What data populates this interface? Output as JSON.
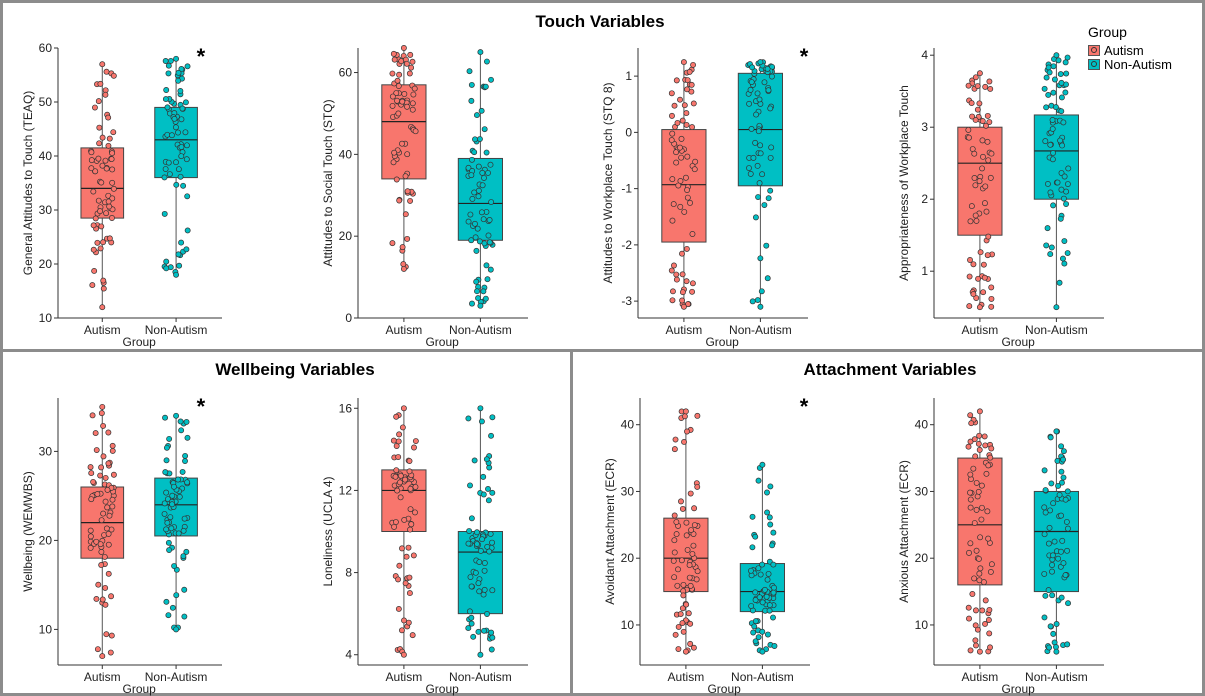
{
  "sections": {
    "touch": "Touch Variables",
    "wellbeing": "Wellbeing Variables",
    "attachment": "Attachment Variables"
  },
  "legend": {
    "title": "Group",
    "items": [
      {
        "label": "Autism",
        "color": "#F8766D"
      },
      {
        "label": "Non-Autism",
        "color": "#00BFC4"
      }
    ]
  },
  "chart_data": [
    {
      "type": "box",
      "ylabel": "General Attitudes to Touch (TEAQ)",
      "xlabel": "Group",
      "categories": [
        "Autism",
        "Non-Autism"
      ],
      "ylim": [
        10,
        60
      ],
      "yticks": [
        10,
        20,
        30,
        40,
        50,
        60
      ],
      "significance": "*",
      "series": [
        {
          "name": "Autism",
          "min": 12,
          "q1": 28.5,
          "median": 34,
          "q3": 41.5,
          "max": 57
        },
        {
          "name": "Non-Autism",
          "min": 18,
          "q1": 36,
          "median": 43,
          "q3": 49,
          "max": 58
        }
      ]
    },
    {
      "type": "box",
      "ylabel": "Attitudes to Social Touch (STQ)",
      "xlabel": "Group",
      "categories": [
        "Autism",
        "Non-Autism"
      ],
      "ylim": [
        0,
        66
      ],
      "yticks": [
        0,
        20,
        40,
        60
      ],
      "significance": "*",
      "series": [
        {
          "name": "Autism",
          "min": 12,
          "q1": 34,
          "median": 48,
          "q3": 57,
          "max": 66
        },
        {
          "name": "Non-Autism",
          "min": 3,
          "q1": 19,
          "median": 28,
          "q3": 39,
          "max": 65
        }
      ]
    },
    {
      "type": "box",
      "ylabel": "Attitudes to Workplace Touch (STQ 8)",
      "xlabel": "Group",
      "categories": [
        "Autism",
        "Non-Autism"
      ],
      "ylim": [
        -3.3,
        1.5
      ],
      "yticks": [
        -3,
        -2,
        -1,
        0,
        1
      ],
      "significance": "*",
      "series": [
        {
          "name": "Autism",
          "min": -3.1,
          "q1": -1.95,
          "median": -0.93,
          "q3": 0.05,
          "max": 1.25
        },
        {
          "name": "Non-Autism",
          "min": -3.1,
          "q1": -0.95,
          "median": 0.05,
          "q3": 1.05,
          "max": 1.25
        }
      ]
    },
    {
      "type": "box",
      "ylabel": "Appropriateness of Workplace Touch",
      "xlabel": "Group",
      "categories": [
        "Autism",
        "Non-Autism"
      ],
      "ylim": [
        0.35,
        4.1
      ],
      "yticks": [
        1,
        2,
        3,
        4
      ],
      "significance": "*",
      "series": [
        {
          "name": "Autism",
          "min": 0.5,
          "q1": 1.5,
          "median": 2.5,
          "q3": 3.0,
          "max": 3.75
        },
        {
          "name": "Non-Autism",
          "min": 0.5,
          "q1": 2.0,
          "median": 2.67,
          "q3": 3.17,
          "max": 4.0
        }
      ]
    },
    {
      "type": "box",
      "ylabel": "Wellbeing (WEMWBS)",
      "xlabel": "Group",
      "categories": [
        "Autism",
        "Non-Autism"
      ],
      "ylim": [
        6,
        36
      ],
      "yticks": [
        10,
        20,
        30
      ],
      "significance": "*",
      "series": [
        {
          "name": "Autism",
          "min": 7,
          "q1": 18,
          "median": 22,
          "q3": 26,
          "max": 35
        },
        {
          "name": "Non-Autism",
          "min": 10,
          "q1": 20.5,
          "median": 24,
          "q3": 27,
          "max": 34
        }
      ]
    },
    {
      "type": "box",
      "ylabel": "Loneliness (UCLA 4)",
      "xlabel": "Group",
      "categories": [
        "Autism",
        "Non-Autism"
      ],
      "ylim": [
        3.5,
        16.5
      ],
      "yticks": [
        4,
        8,
        12,
        16
      ],
      "significance": "*",
      "series": [
        {
          "name": "Autism",
          "min": 4,
          "q1": 10,
          "median": 12,
          "q3": 13,
          "max": 16
        },
        {
          "name": "Non-Autism",
          "min": 4,
          "q1": 6,
          "median": 9,
          "q3": 10,
          "max": 16
        }
      ]
    },
    {
      "type": "box",
      "ylabel": "Avoidant Attachment (ECR)",
      "xlabel": "Group",
      "categories": [
        "Autism",
        "Non-Autism"
      ],
      "ylim": [
        4,
        44
      ],
      "yticks": [
        10,
        20,
        30,
        40
      ],
      "significance": "*",
      "series": [
        {
          "name": "Autism",
          "min": 6,
          "q1": 15,
          "median": 20,
          "q3": 26,
          "max": 42
        },
        {
          "name": "Non-Autism",
          "min": 6,
          "q1": 12,
          "median": 15,
          "q3": 19.2,
          "max": 34
        }
      ]
    },
    {
      "type": "box",
      "ylabel": "Anxious Attachment (ECR)",
      "xlabel": "Group",
      "categories": [
        "Autism",
        "Non-Autism"
      ],
      "ylim": [
        4,
        44
      ],
      "yticks": [
        10,
        20,
        30,
        40
      ],
      "significance": "",
      "series": [
        {
          "name": "Autism",
          "min": 6,
          "q1": 16,
          "median": 25,
          "q3": 35,
          "max": 42
        },
        {
          "name": "Non-Autism",
          "min": 6,
          "q1": 15,
          "median": 24,
          "q3": 30,
          "max": 39
        }
      ]
    }
  ]
}
